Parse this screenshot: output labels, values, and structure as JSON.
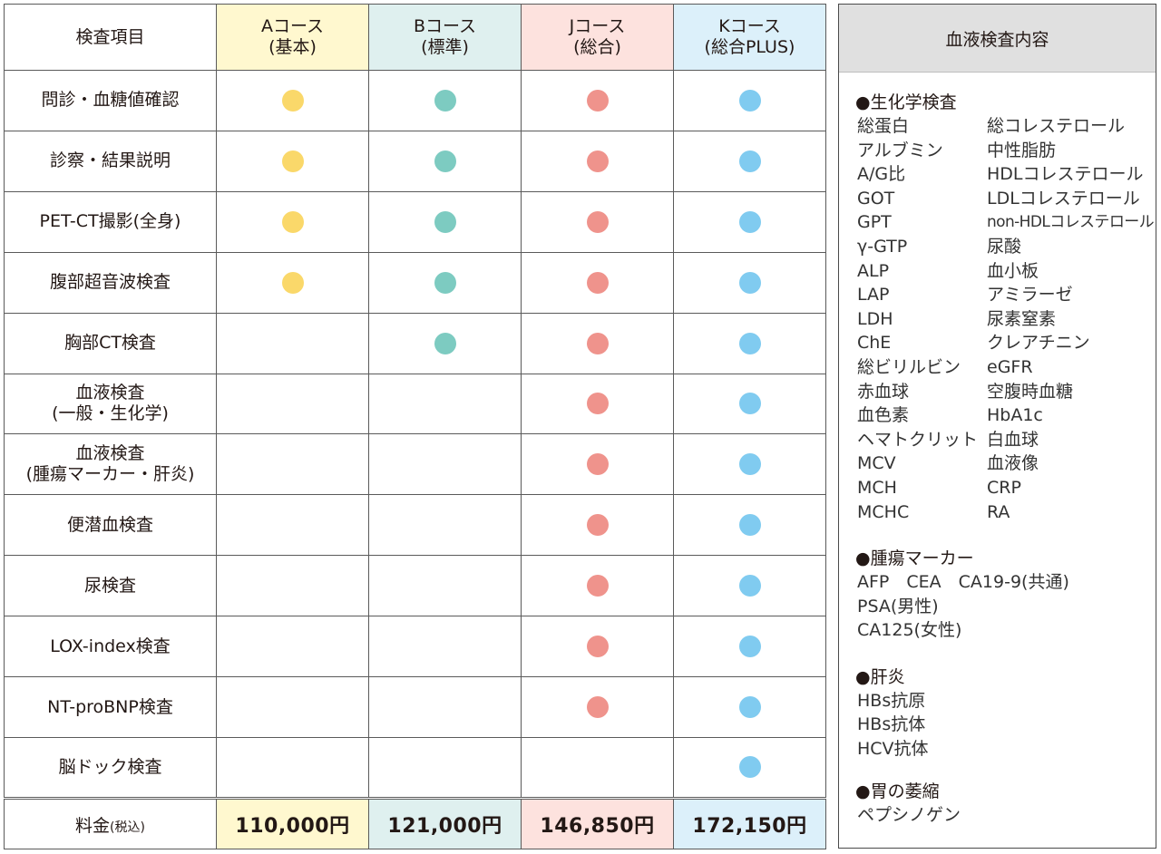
{
  "table": {
    "item_header": "検査項目",
    "courses": [
      {
        "name": "Aコース",
        "sub": "(基本)",
        "color": "#fad86a",
        "price": "110,000",
        "yen": "円"
      },
      {
        "name": "Bコース",
        "sub": "(標準)",
        "color": "#7dcbc1",
        "price": "121,000",
        "yen": "円"
      },
      {
        "name": "Jコース",
        "sub": "(総合)",
        "color": "#ef938c",
        "price": "146,850",
        "yen": "円"
      },
      {
        "name": "Kコース",
        "sub": "(総合PLUS)",
        "color": "#80cbf0",
        "price": "172,150",
        "yen": "円"
      }
    ],
    "rows": [
      {
        "line1": "問診・血糖値確認",
        "line2": "",
        "a": true,
        "b": true,
        "j": true,
        "k": true
      },
      {
        "line1": "診察・結果説明",
        "line2": "",
        "a": true,
        "b": true,
        "j": true,
        "k": true
      },
      {
        "line1": "PET-CT撮影(全身)",
        "line2": "",
        "a": true,
        "b": true,
        "j": true,
        "k": true
      },
      {
        "line1": "腹部超音波検査",
        "line2": "",
        "a": true,
        "b": true,
        "j": true,
        "k": true
      },
      {
        "line1": "胸部CT検査",
        "line2": "",
        "a": false,
        "b": true,
        "j": true,
        "k": true
      },
      {
        "line1": "血液検査",
        "line2": "(一般・生化学)",
        "a": false,
        "b": false,
        "j": true,
        "k": true
      },
      {
        "line1": "血液検査",
        "line2": "(腫瘍マーカー・肝炎)",
        "a": false,
        "b": false,
        "j": true,
        "k": true
      },
      {
        "line1": "便潜血検査",
        "line2": "",
        "a": false,
        "b": false,
        "j": true,
        "k": true
      },
      {
        "line1": "尿検査",
        "line2": "",
        "a": false,
        "b": false,
        "j": true,
        "k": true
      },
      {
        "line1": "LOX-index検査",
        "line2": "",
        "a": false,
        "b": false,
        "j": true,
        "k": true
      },
      {
        "line1": "NT-proBNP検査",
        "line2": "",
        "a": false,
        "b": false,
        "j": true,
        "k": true
      },
      {
        "line1": "脳ドック検査",
        "line2": "",
        "a": false,
        "b": false,
        "j": false,
        "k": true
      }
    ],
    "fee_label": "料金",
    "fee_note": "(税込)"
  },
  "blood_panel": {
    "title": "血液検査内容",
    "biochem_title": "●生化学検査",
    "biochem_left": [
      "総蛋白",
      "アルブミン",
      "A/G比",
      "GOT",
      "GPT",
      "γ-GTP",
      "ALP",
      "LAP",
      "LDH",
      "ChE",
      "総ビリルビン",
      "赤血球",
      "血色素",
      "ヘマトクリット",
      "MCV",
      "MCH",
      "MCHC"
    ],
    "biochem_right": [
      "総コレステロール",
      "中性脂肪",
      "HDLコレステロール",
      "LDLコレステロール",
      "non-HDLコレステロール",
      "尿酸",
      "血小板",
      "アミラーゼ",
      "尿素窒素",
      "クレアチニン",
      "eGFR",
      "空腹時血糖",
      "HbA1c",
      "白血球",
      "血液像",
      "CRP",
      "RA"
    ],
    "tumor_title": "●腫瘍マーカー",
    "tumor_items": [
      "AFP　CEA　CA19-9(共通)",
      "PSA(男性)",
      "CA125(女性)"
    ],
    "hepatitis_title": "●肝炎",
    "hepatitis_items": [
      "HBs抗原",
      "HBs抗体",
      "HCV抗体"
    ],
    "stomach_title": "●胃の萎縮",
    "stomach_items": [
      "ペプシノゲン"
    ]
  }
}
